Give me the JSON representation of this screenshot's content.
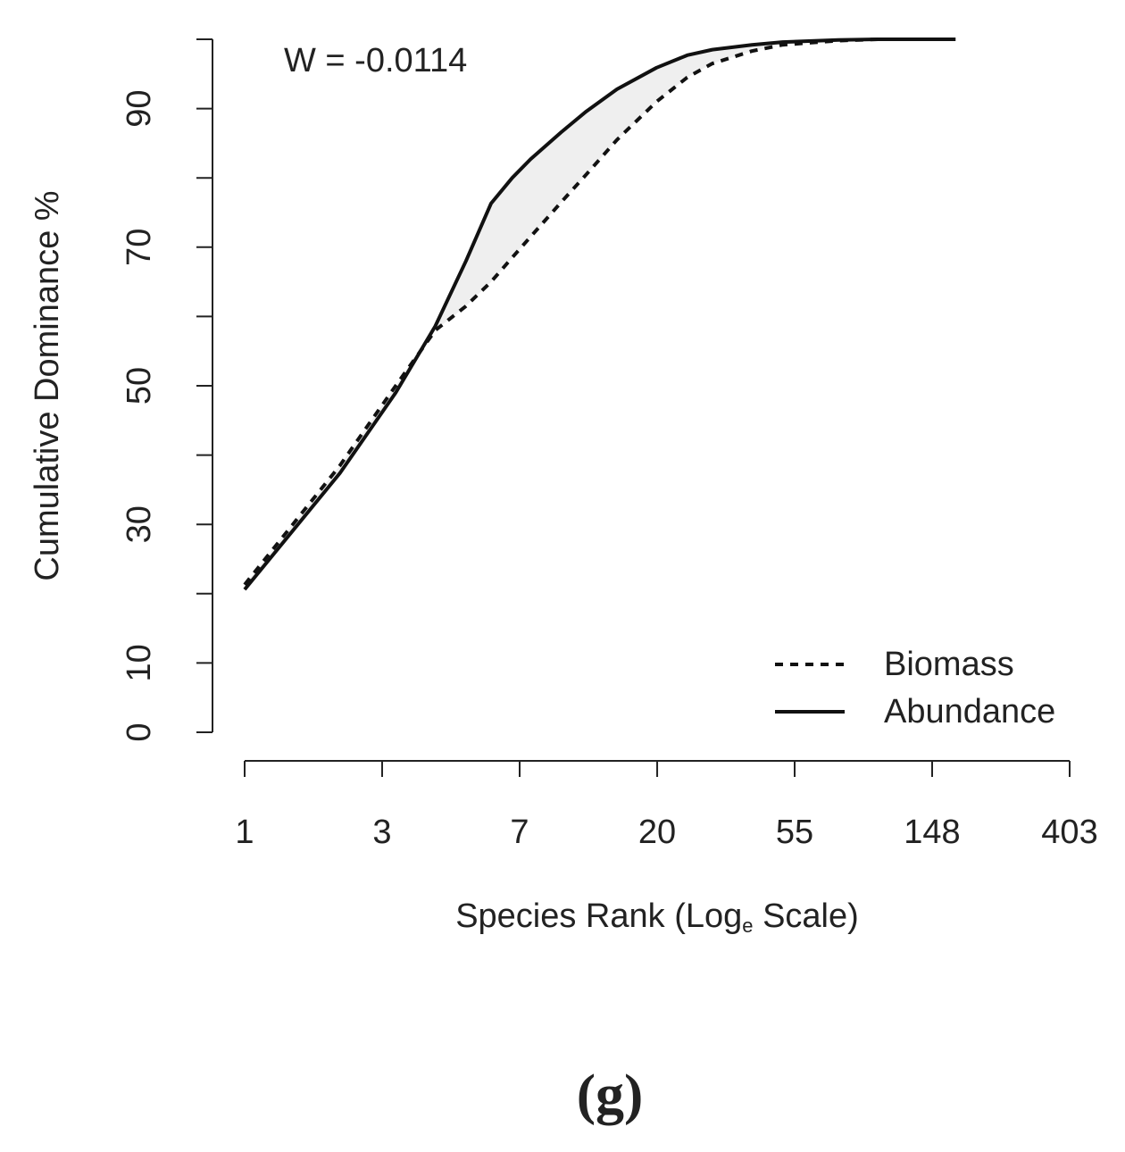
{
  "chart_data": {
    "type": "line",
    "annotation": "W = -0.0114",
    "ylabel": "Cumulative Dominance %",
    "xlabel": [
      "Species Rank (Log",
      "e",
      " Scale)"
    ],
    "caption": "(g)",
    "xscale": "log",
    "xlim": [
      1,
      403.4
    ],
    "xticks": [
      1,
      {
        "value": 2.718,
        "label": "3"
      },
      {
        "value": 7.389,
        "label": "7"
      },
      {
        "value": 20.09,
        "label": "20"
      },
      {
        "value": 54.6,
        "label": "55"
      },
      {
        "value": 148.4,
        "label": "148"
      },
      {
        "value": 403.4,
        "label": "403"
      }
    ],
    "ylim": [
      0,
      100
    ],
    "yticks": [
      0,
      10,
      {
        "value": 20,
        "label": null
      },
      30,
      {
        "value": 40,
        "label": null
      },
      50,
      {
        "value": 60,
        "label": null
      },
      70,
      {
        "value": 80,
        "label": null
      },
      90,
      {
        "value": 100,
        "label": null
      }
    ],
    "legend": "bottom-right",
    "x": [
      1,
      2,
      3,
      4,
      5,
      6,
      7,
      8,
      10,
      12,
      15,
      20,
      25,
      30,
      40,
      50,
      75,
      100,
      176
    ],
    "series": [
      {
        "name": "Biomass",
        "color": "#111111",
        "dash": true,
        "values": [
          21.3,
          38.5,
          50,
          58,
          61.5,
          65,
          68.5,
          71.5,
          76.5,
          80.5,
          85.5,
          91,
          94.5,
          96.5,
          98.3,
          99.2,
          99.8,
          100,
          100
        ]
      },
      {
        "name": "Abundance",
        "color": "#111111",
        "dash": false,
        "values": [
          20.6,
          37.4,
          49,
          58.6,
          68,
          76.3,
          80,
          82.7,
          86.6,
          89.6,
          92.8,
          95.9,
          97.7,
          98.5,
          99.2,
          99.6,
          99.9,
          100,
          100
        ]
      }
    ]
  }
}
